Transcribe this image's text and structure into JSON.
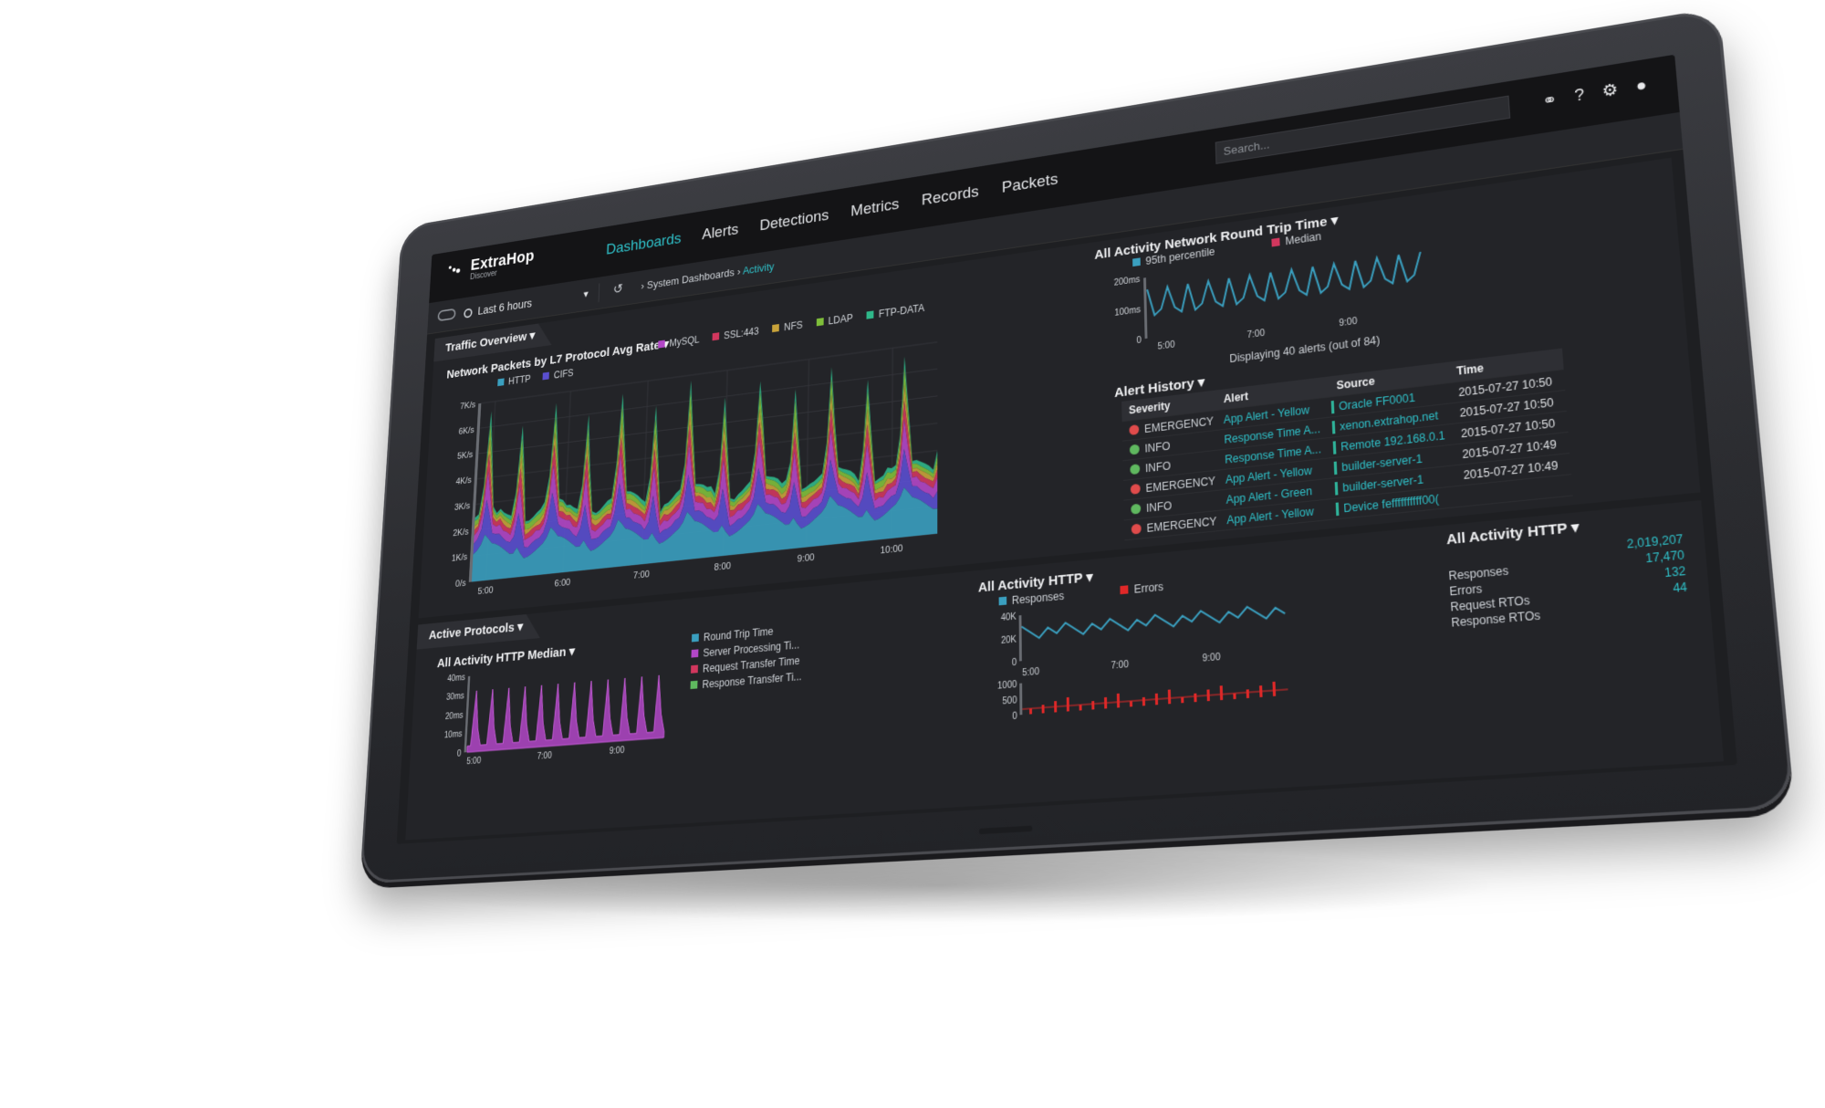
{
  "app": {
    "logo_text": "ExtraHop",
    "logo_sub": "Discover"
  },
  "nav": [
    "Dashboards",
    "Alerts",
    "Detections",
    "Metrics",
    "Records",
    "Packets"
  ],
  "search": {
    "placeholder": "Search..."
  },
  "toolbar": {
    "time_range": "Last 6 hours"
  },
  "breadcrumb": {
    "parent": "System Dashboards",
    "current": "Activity"
  },
  "traffic_panel": {
    "tab": "Traffic Overview",
    "chart": {
      "title": "Network Packets by L7 Protocol Avg Rate",
      "legend": [
        {
          "name": "HTTP",
          "color": "#3a9fbf"
        },
        {
          "name": "CIFS",
          "color": "#5a4fcf"
        },
        {
          "name": "MySQL",
          "color": "#b247c7"
        },
        {
          "name": "SSL:443",
          "color": "#d2375e"
        },
        {
          "name": "NFS",
          "color": "#c9a33a"
        },
        {
          "name": "LDAP",
          "color": "#7fbf3a"
        },
        {
          "name": "FTP-DATA",
          "color": "#2fb88a"
        }
      ],
      "yticks": [
        "7K/s",
        "6K/s",
        "5K/s",
        "4K/s",
        "3K/s",
        "2K/s",
        "1K/s",
        "0/s"
      ],
      "xticks": [
        "5:00",
        "6:00",
        "7:00",
        "8:00",
        "9:00",
        "10:00"
      ]
    }
  },
  "rtt_chart": {
    "title": "All Activity Network Round Trip Time",
    "legend": [
      {
        "name": "95th percentile",
        "color": "#3a9fbf"
      },
      {
        "name": "Median",
        "color": "#d2375e"
      }
    ],
    "yticks": [
      "200ms",
      "100ms",
      "0"
    ],
    "xticks": [
      "5:00",
      "7:00",
      "9:00"
    ]
  },
  "alerts": {
    "title": "Alert History",
    "count_text": "Displaying 40 alerts (out of 84)",
    "columns": [
      "Severity",
      "Alert",
      "Source",
      "Time"
    ],
    "rows": [
      {
        "severity": "EMERGENCY",
        "alert": "App Alert - Yellow",
        "source": "Oracle FF0001",
        "time": "2015-07-27 10:50",
        "color": "#e04b4b"
      },
      {
        "severity": "INFO",
        "alert": "Response Time A...",
        "source": "xenon.extrahop.net",
        "time": "2015-07-27 10:50",
        "color": "#5fb85f"
      },
      {
        "severity": "INFO",
        "alert": "Response Time A...",
        "source": "Remote 192.168.0.1",
        "time": "2015-07-27 10:50",
        "color": "#5fb85f"
      },
      {
        "severity": "EMERGENCY",
        "alert": "App Alert - Yellow",
        "source": "builder-server-1",
        "time": "2015-07-27 10:49",
        "color": "#e04b4b"
      },
      {
        "severity": "INFO",
        "alert": "App Alert - Green",
        "source": "builder-server-1",
        "time": "2015-07-27 10:49",
        "color": "#5fb85f"
      },
      {
        "severity": "EMERGENCY",
        "alert": "App Alert - Yellow",
        "source": "Device feffffffffff00(",
        "time": "",
        "color": "#e04b4b"
      }
    ]
  },
  "protocols_panel": {
    "tab": "Active Protocols",
    "median_chart": {
      "title": "All Activity HTTP Median",
      "yticks": [
        "40ms",
        "30ms",
        "20ms",
        "10ms",
        "0"
      ],
      "xticks": [
        "5:00",
        "7:00",
        "9:00"
      ],
      "legend": [
        {
          "name": "Round Trip Time",
          "color": "#3a9fbf"
        },
        {
          "name": "Server Processing Ti...",
          "color": "#b247c7"
        },
        {
          "name": "Request Transfer Time",
          "color": "#d2375e"
        },
        {
          "name": "Response Transfer Ti...",
          "color": "#5fb85f"
        }
      ]
    },
    "http_chart": {
      "title": "All Activity HTTP",
      "legend": [
        {
          "name": "Responses",
          "color": "#3a9fbf"
        },
        {
          "name": "Errors",
          "color": "#e02828"
        }
      ],
      "yticks_top": [
        "40K",
        "20K",
        "0"
      ],
      "yticks_bottom": [
        "1000",
        "500",
        "0"
      ],
      "xticks": [
        "5:00",
        "7:00",
        "9:00"
      ]
    },
    "http_stats": {
      "title": "All Activity HTTP",
      "rows": [
        {
          "label": "",
          "value": "2,019,207"
        },
        {
          "label": "Responses",
          "value": "17,470"
        },
        {
          "label": "Errors",
          "value": "132"
        },
        {
          "label": "Request RTOs",
          "value": "44"
        },
        {
          "label": "Response RTOs",
          "value": ""
        }
      ]
    }
  }
}
